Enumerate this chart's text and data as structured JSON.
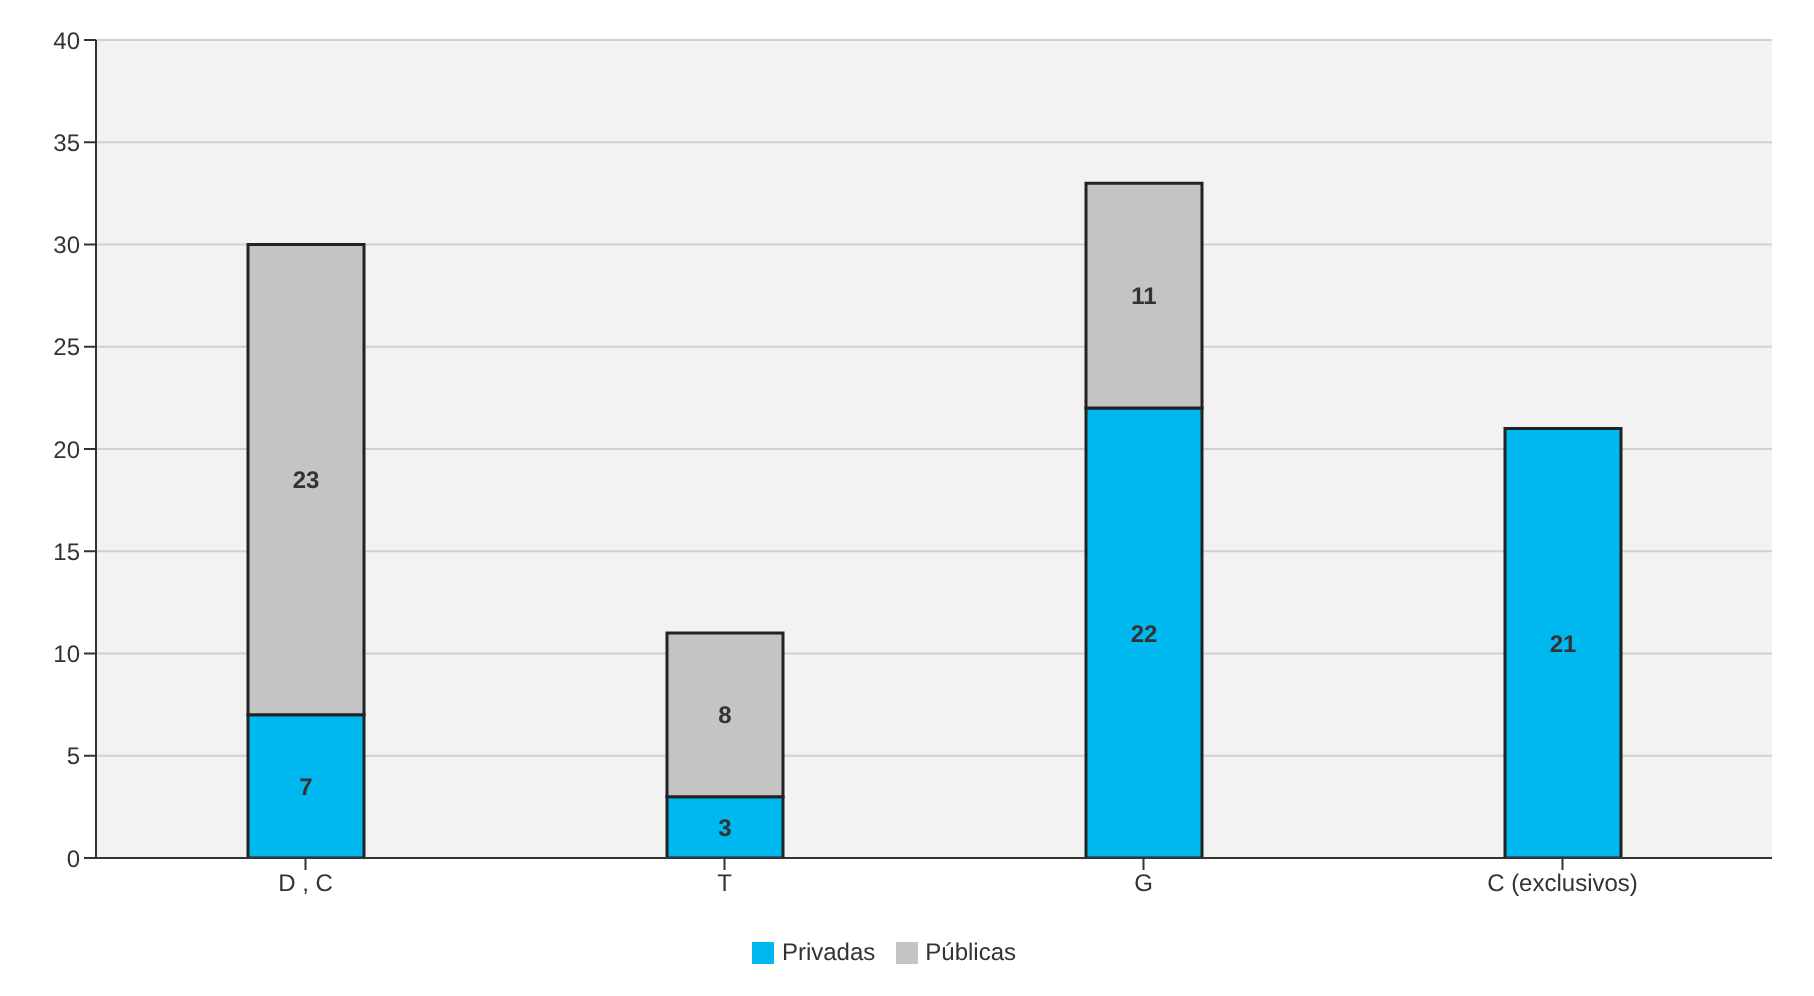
{
  "chart_data": {
    "type": "bar",
    "stacked": true,
    "categories": [
      "D , C",
      "T",
      "G",
      "C (exclusivos)"
    ],
    "series": [
      {
        "name": "Privadas",
        "color": "#00b8f0",
        "values": [
          7,
          3,
          22,
          21
        ]
      },
      {
        "name": "Públicas",
        "color": "#c4c4c4",
        "values": [
          23,
          8,
          11,
          null
        ]
      }
    ],
    "data_labels": true,
    "ylim": [
      0,
      40
    ],
    "yticks": [
      0,
      5,
      10,
      15,
      20,
      25,
      30,
      35,
      40
    ],
    "grid": "y",
    "legend": "bottom"
  }
}
